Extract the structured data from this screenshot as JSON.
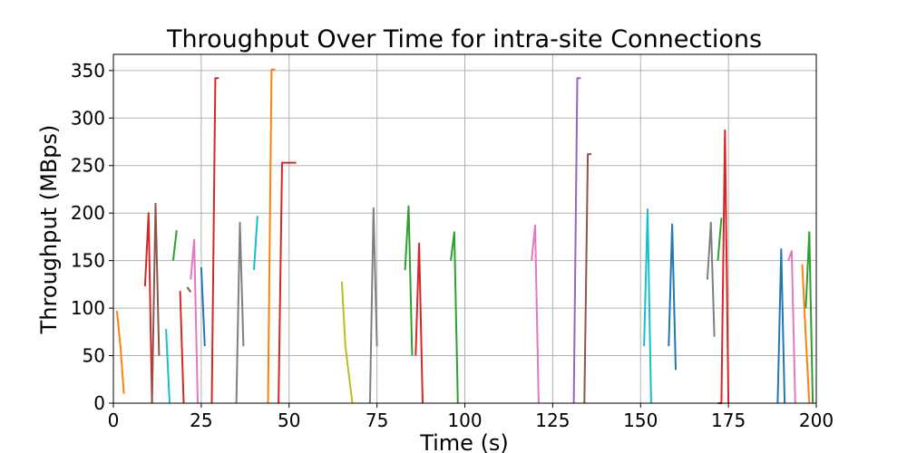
{
  "chart_data": {
    "type": "line",
    "title": "Throughput Over Time for intra-site Connections",
    "xlabel": "Time (s)",
    "ylabel": "Throughput (MBps)",
    "xlim": [
      0,
      200
    ],
    "ylim": [
      0,
      367
    ],
    "xticks": [
      "0",
      "25",
      "50",
      "75",
      "100",
      "125",
      "150",
      "175",
      "200"
    ],
    "xtick_values": [
      0,
      25,
      50,
      75,
      100,
      125,
      150,
      175,
      200
    ],
    "yticks": [
      "0",
      "50",
      "100",
      "150",
      "200",
      "250",
      "300",
      "350"
    ],
    "ytick_values": [
      0,
      50,
      100,
      150,
      200,
      250,
      300,
      350
    ],
    "grid": true,
    "palette": [
      "#1f77b4",
      "#ff7f0e",
      "#2ca02c",
      "#d62728",
      "#9467bd",
      "#8c564b",
      "#e377c2",
      "#7f7f7f",
      "#bcbd22",
      "#17becf"
    ],
    "series": [
      {
        "color_index": 1,
        "x": [
          1,
          2,
          3
        ],
        "y": [
          97,
          60,
          10
        ]
      },
      {
        "color_index": 3,
        "x": [
          9,
          10,
          11
        ],
        "y": [
          123,
          200,
          0
        ]
      },
      {
        "color_index": 5,
        "x": [
          11,
          12,
          13
        ],
        "y": [
          0,
          210,
          50
        ]
      },
      {
        "color_index": 9,
        "x": [
          15,
          16
        ],
        "y": [
          78,
          0
        ]
      },
      {
        "color_index": 2,
        "x": [
          17,
          18
        ],
        "y": [
          150,
          182
        ]
      },
      {
        "color_index": 3,
        "x": [
          19,
          20
        ],
        "y": [
          118,
          0
        ]
      },
      {
        "color_index": 5,
        "x": [
          21,
          22
        ],
        "y": [
          122,
          117
        ]
      },
      {
        "color_index": 6,
        "x": [
          22,
          23,
          24
        ],
        "y": [
          130,
          172,
          0
        ]
      },
      {
        "color_index": 0,
        "x": [
          25,
          26
        ],
        "y": [
          143,
          60
        ]
      },
      {
        "color_index": 3,
        "x": [
          28,
          29,
          30
        ],
        "y": [
          0,
          342,
          342
        ]
      },
      {
        "color_index": 7,
        "x": [
          35,
          36,
          37
        ],
        "y": [
          0,
          190,
          60
        ]
      },
      {
        "color_index": 1,
        "x": [
          44,
          45,
          46
        ],
        "y": [
          0,
          351,
          351
        ]
      },
      {
        "color_index": 3,
        "x": [
          47,
          48,
          52
        ],
        "y": [
          0,
          253,
          253
        ]
      },
      {
        "color_index": 9,
        "x": [
          40,
          41
        ],
        "y": [
          140,
          197
        ]
      },
      {
        "color_index": 8,
        "x": [
          65,
          66,
          68
        ],
        "y": [
          128,
          60,
          0
        ]
      },
      {
        "color_index": 7,
        "x": [
          73,
          74,
          75
        ],
        "y": [
          0,
          205,
          60
        ]
      },
      {
        "color_index": 2,
        "x": [
          83,
          84,
          85
        ],
        "y": [
          140,
          207,
          50
        ]
      },
      {
        "color_index": 3,
        "x": [
          86,
          87,
          88
        ],
        "y": [
          50,
          168,
          0
        ]
      },
      {
        "color_index": 2,
        "x": [
          96,
          97,
          98
        ],
        "y": [
          150,
          180,
          0
        ]
      },
      {
        "color_index": 6,
        "x": [
          119,
          120,
          121
        ],
        "y": [
          150,
          187,
          0
        ]
      },
      {
        "color_index": 4,
        "x": [
          131,
          132,
          133
        ],
        "y": [
          0,
          342,
          342
        ]
      },
      {
        "color_index": 5,
        "x": [
          134,
          135,
          136
        ],
        "y": [
          0,
          262,
          262
        ]
      },
      {
        "color_index": 9,
        "x": [
          151,
          152,
          153
        ],
        "y": [
          60,
          204,
          0
        ]
      },
      {
        "color_index": 0,
        "x": [
          158,
          159,
          160
        ],
        "y": [
          60,
          188,
          35
        ]
      },
      {
        "color_index": 7,
        "x": [
          169,
          170,
          171
        ],
        "y": [
          130,
          190,
          70
        ]
      },
      {
        "color_index": 3,
        "x": [
          172,
          173,
          174,
          175
        ],
        "y": [
          0,
          0,
          287,
          0
        ]
      },
      {
        "color_index": 2,
        "x": [
          172,
          173
        ],
        "y": [
          150,
          195
        ]
      },
      {
        "color_index": 0,
        "x": [
          189,
          190,
          191
        ],
        "y": [
          0,
          162,
          0
        ]
      },
      {
        "color_index": 2,
        "x": [
          197,
          198,
          199
        ],
        "y": [
          100,
          180,
          0
        ]
      },
      {
        "color_index": 1,
        "x": [
          196,
          197,
          198
        ],
        "y": [
          146,
          70,
          0
        ]
      },
      {
        "color_index": 6,
        "x": [
          192,
          193,
          194
        ],
        "y": [
          150,
          160,
          0
        ]
      }
    ]
  }
}
